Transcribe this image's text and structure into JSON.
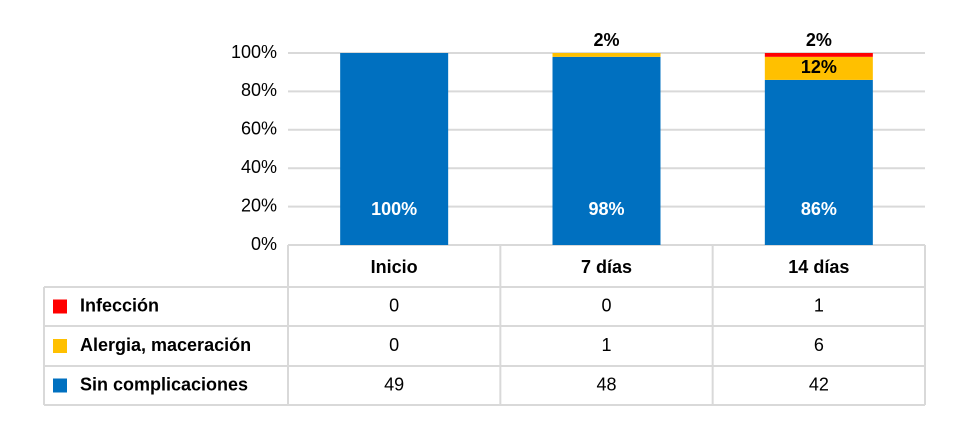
{
  "chart_data": {
    "type": "stacked_bar",
    "categories": [
      "Inicio",
      "7 días",
      "14 días"
    ],
    "ylim": [
      0,
      100
    ],
    "yticks": [
      {
        "value": 0,
        "label": "0%"
      },
      {
        "value": 20,
        "label": "20%"
      },
      {
        "value": 40,
        "label": "40%"
      },
      {
        "value": 60,
        "label": "60%"
      },
      {
        "value": 80,
        "label": "80%"
      },
      {
        "value": 100,
        "label": "100%"
      }
    ],
    "grid": true,
    "series": [
      {
        "name": "Sin complicaciones",
        "color": "#0070c0",
        "values": [
          100,
          98,
          86
        ],
        "value_labels": [
          "100%",
          "98%",
          "86%"
        ],
        "counts": [
          49,
          48,
          42
        ]
      },
      {
        "name": "Alergia, maceración",
        "color": "#ffc000",
        "values": [
          0,
          2,
          12
        ],
        "value_labels": [
          null,
          "2%",
          "12%"
        ],
        "counts": [
          0,
          1,
          6
        ]
      },
      {
        "name": "Infección",
        "color": "#ff0000",
        "values": [
          0,
          0,
          2
        ],
        "value_labels": [
          null,
          null,
          "2%"
        ],
        "counts": [
          0,
          0,
          1
        ]
      }
    ]
  }
}
